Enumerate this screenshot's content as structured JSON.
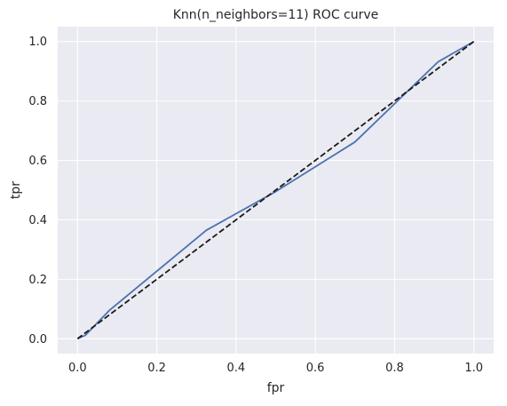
{
  "chart_data": {
    "type": "line",
    "title": "Knn(n_neighbors=11) ROC curve",
    "xlabel": "fpr",
    "ylabel": "tpr",
    "xlim": [
      -0.05,
      1.05
    ],
    "ylim": [
      -0.05,
      1.05
    ],
    "x_ticks": [
      0.0,
      0.2,
      0.4,
      0.6,
      0.8,
      1.0
    ],
    "x_tick_labels": [
      "0.0",
      "0.2",
      "0.4",
      "0.6",
      "0.8",
      "1.0"
    ],
    "y_ticks": [
      0.0,
      0.2,
      0.4,
      0.6,
      0.8,
      1.0
    ],
    "y_tick_labels": [
      "0.0",
      "0.2",
      "0.4",
      "0.6",
      "0.8",
      "1.0"
    ],
    "grid": true,
    "legend": "none",
    "series": [
      {
        "style": "solid",
        "color": "#4c72b0",
        "x": [
          0.0,
          0.02,
          0.08,
          0.325,
          0.5,
          0.7,
          0.91,
          1.0
        ],
        "y": [
          0.0,
          0.012,
          0.095,
          0.365,
          0.495,
          0.662,
          0.932,
          1.0
        ]
      },
      {
        "style": "dashed",
        "color": "#1a1a1a",
        "x": [
          0.0,
          1.0
        ],
        "y": [
          0.0,
          1.0
        ]
      }
    ],
    "colors": {
      "plot_background": "#eaeaf2",
      "grid": "#ffffff",
      "text": "#262626"
    }
  }
}
